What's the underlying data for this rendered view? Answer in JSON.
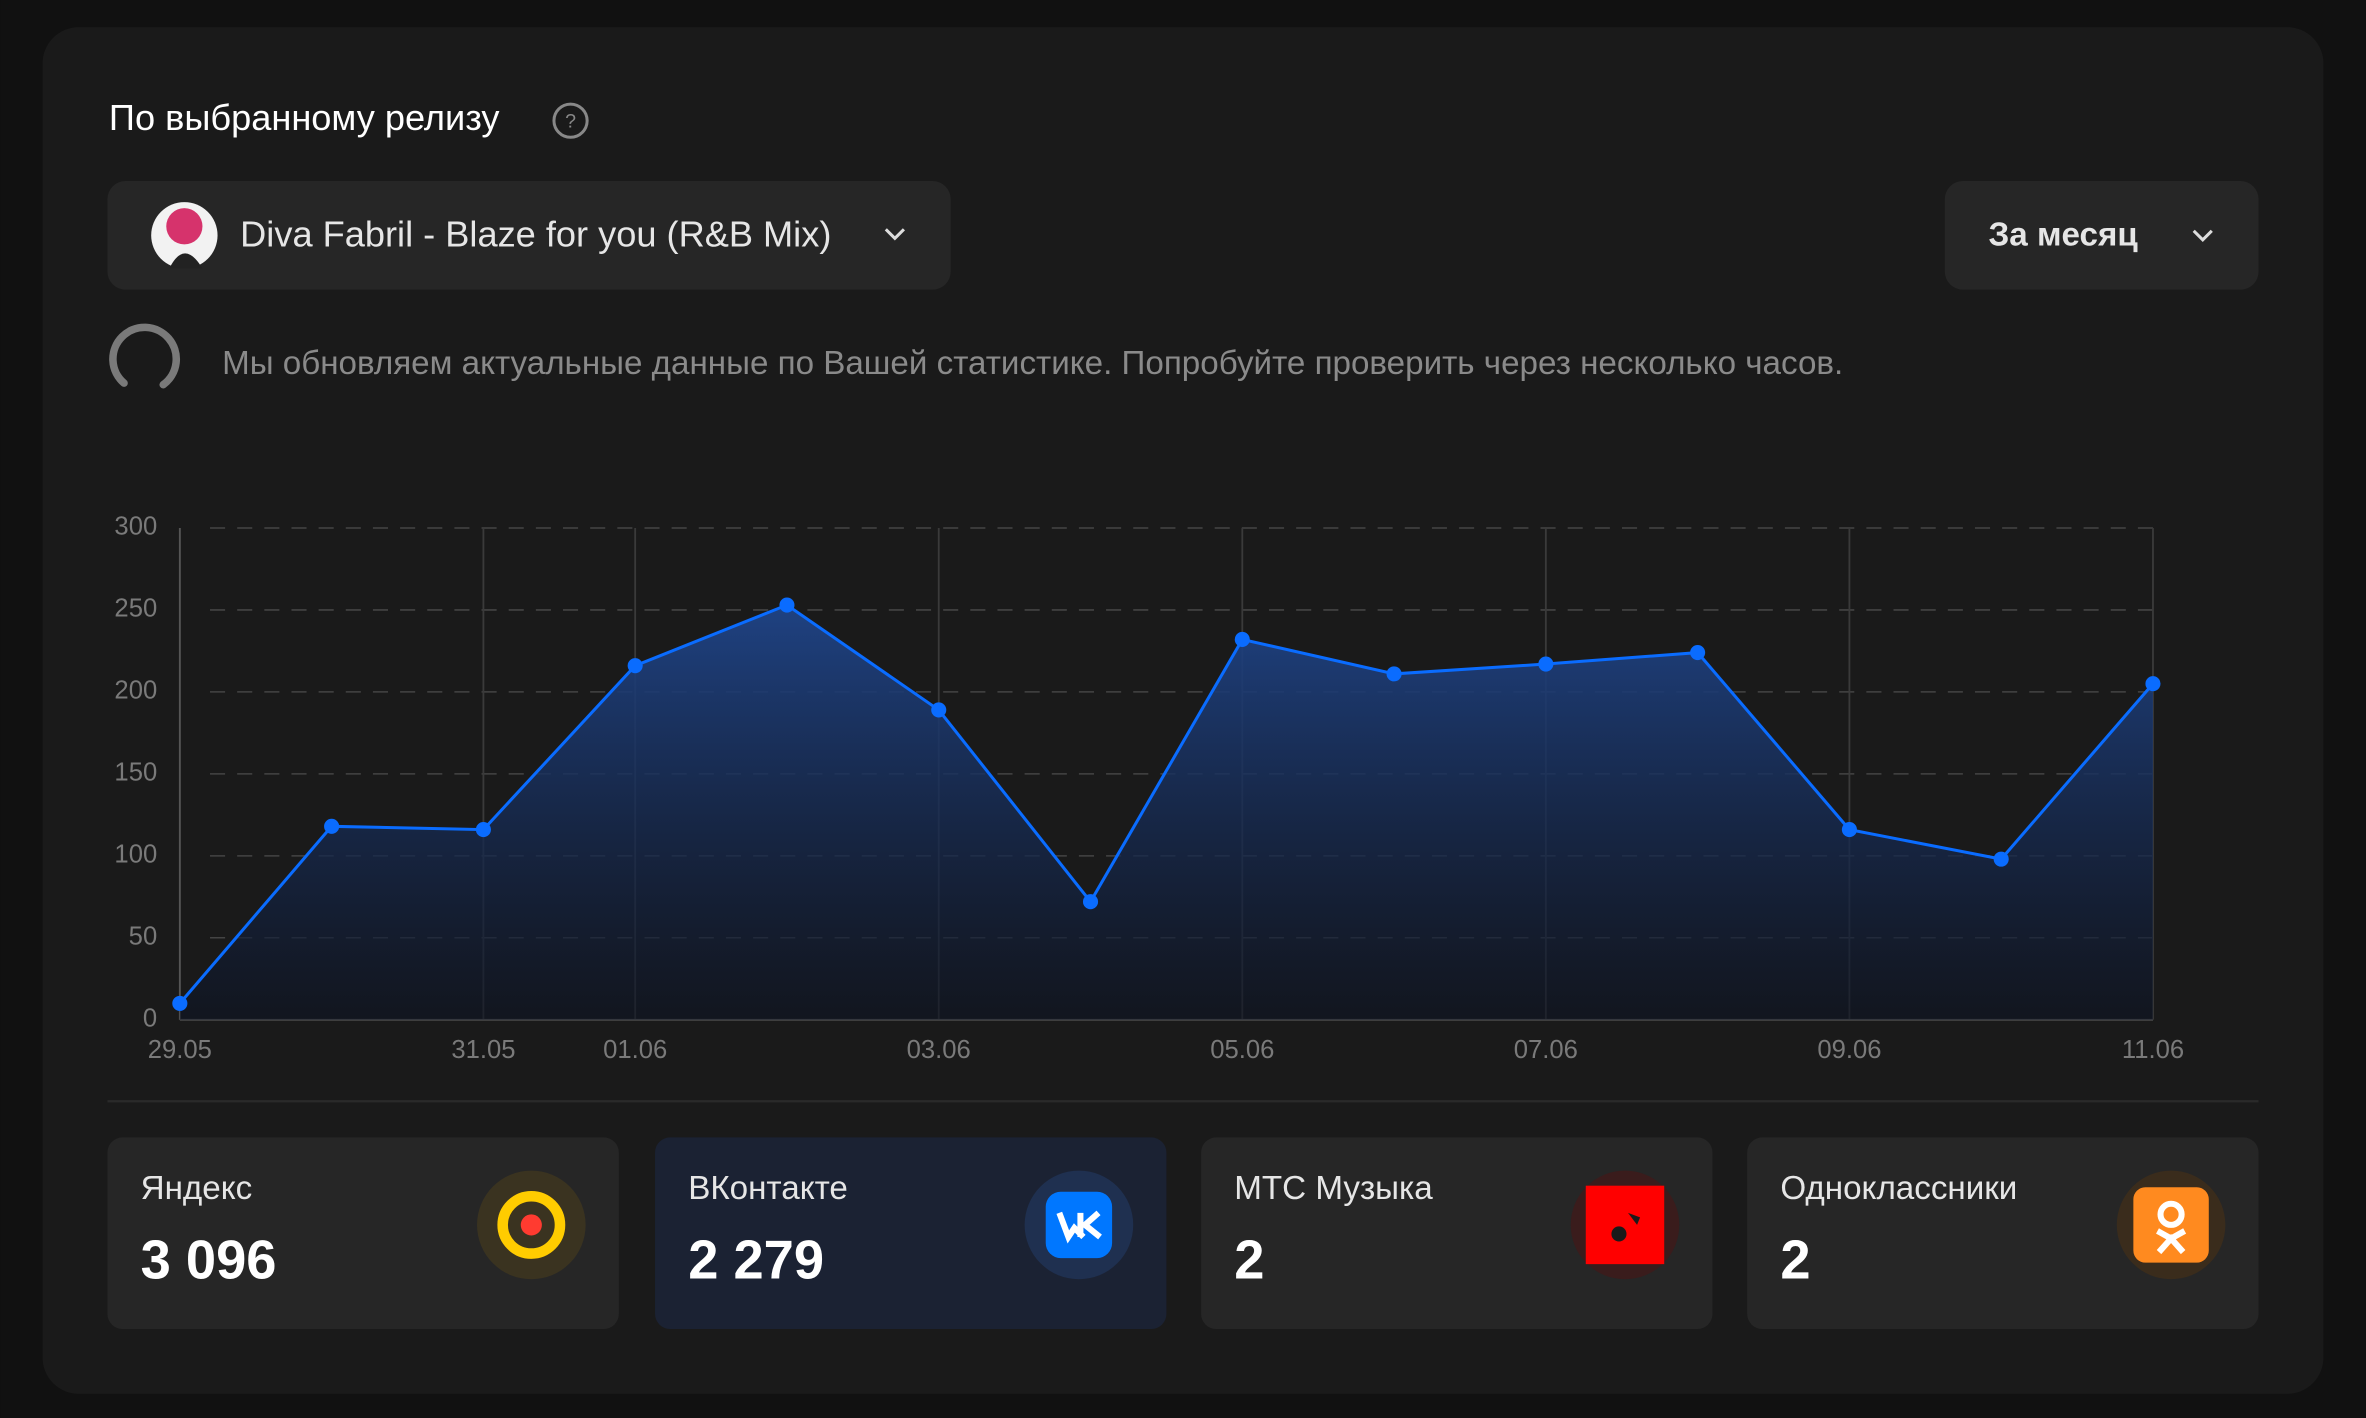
{
  "header": {
    "title": "По выбранному релизу",
    "release": "Diva Fabril - Blaze for you (R&B Mix)",
    "period": "За месяц",
    "notice": "Мы обновляем актуальные данные по Вашей статистике. Попробуйте проверить через несколько часов."
  },
  "chart_data": {
    "type": "area",
    "categories": [
      "29.05",
      null,
      "31.05",
      "01.06",
      null,
      "03.06",
      null,
      "05.06",
      null,
      "07.06",
      null,
      "09.06",
      null,
      "11.06"
    ],
    "values": [
      10,
      118,
      116,
      216,
      253,
      189,
      72,
      232,
      211,
      217,
      224,
      116,
      98,
      205
    ],
    "color": "#0a6cff",
    "ylim": [
      0,
      300
    ],
    "yticks": [
      0,
      50,
      100,
      150,
      200,
      250,
      300
    ],
    "grid": true
  },
  "stats": [
    {
      "label": "Яндекс",
      "value": "3 096"
    },
    {
      "label": "ВКонтакте",
      "value": "2 279"
    },
    {
      "label": "МТС Музыка",
      "value": "2"
    },
    {
      "label": "Одноклассники",
      "value": "2"
    }
  ]
}
